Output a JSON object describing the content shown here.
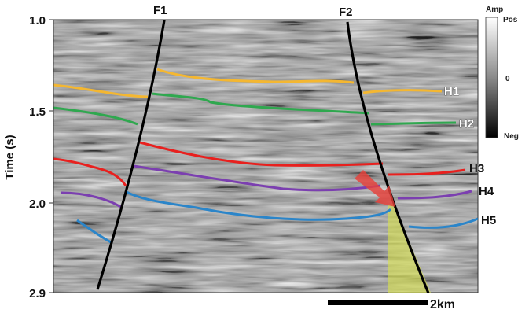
{
  "axis": {
    "ylabel": "Time (s)",
    "ticks": [
      "1.0",
      "1.5",
      "2.0",
      "2.9"
    ]
  },
  "faults": [
    {
      "label": "F1"
    },
    {
      "label": "F2"
    }
  ],
  "horizons": [
    {
      "label": "H1",
      "color": "#f4b731"
    },
    {
      "label": "H2",
      "color": "#2fa84f"
    },
    {
      "label": "H3",
      "color": "#e8201e"
    },
    {
      "label": "H4",
      "color": "#7b3fb0"
    },
    {
      "label": "H5",
      "color": "#2b85c9"
    }
  ],
  "colorbar": {
    "title": "Amp",
    "max_label": "Pos",
    "mid_label": "0",
    "min_label": "Neg"
  },
  "scale_bar": {
    "label": "2km"
  },
  "annotations": {
    "arrow_color": "#e8413a",
    "highlight_color": "#d6e04a"
  }
}
